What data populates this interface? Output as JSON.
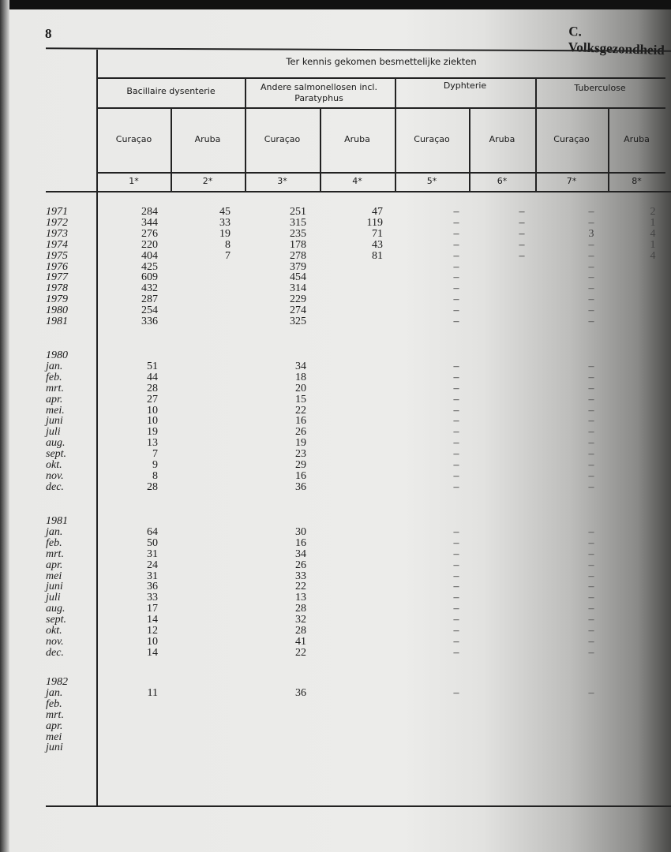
{
  "page_number": "8",
  "chapter": "C. Volksgezondheid",
  "table": {
    "title": "Ter kennis gekomen besmettelijke ziekten",
    "groups": [
      {
        "label": "Bacillaire dysenterie"
      },
      {
        "label": "Andere salmonellosen incl. Paratyphus"
      },
      {
        "label": "Dyphterie"
      },
      {
        "label": "Tuberculose"
      }
    ],
    "columns": [
      {
        "label": "Curaçao",
        "num": "1*"
      },
      {
        "label": "Aruba",
        "num": "2*"
      },
      {
        "label": "Curaçao",
        "num": "3*"
      },
      {
        "label": "Aruba",
        "num": "4*"
      },
      {
        "label": "Curaçao",
        "num": "5*"
      },
      {
        "label": "Aruba",
        "num": "6*"
      },
      {
        "label": "Curaçao",
        "num": "7*"
      },
      {
        "label": "Aruba",
        "num": "8*"
      }
    ],
    "sections": [
      {
        "heading": "",
        "rows": [
          {
            "label": "1971",
            "values": [
              "284",
              "45",
              "251",
              "47",
              "–",
              "–",
              "–",
              "2"
            ]
          },
          {
            "label": "1972",
            "values": [
              "344",
              "33",
              "315",
              "119",
              "–",
              "–",
              "–",
              "1"
            ]
          },
          {
            "label": "1973",
            "values": [
              "276",
              "19",
              "235",
              "71",
              "–",
              "–",
              "3",
              "4"
            ]
          },
          {
            "label": "1974",
            "values": [
              "220",
              "8",
              "178",
              "43",
              "–",
              "–",
              "–",
              "1"
            ]
          },
          {
            "label": "1975",
            "values": [
              "404",
              "7",
              "278",
              "81",
              "–",
              "–",
              "–",
              "4"
            ]
          },
          {
            "label": "1976",
            "values": [
              "425",
              "",
              "379",
              "",
              "–",
              "",
              "–",
              ""
            ]
          },
          {
            "label": "1977",
            "values": [
              "609",
              "",
              "454",
              "",
              "–",
              "",
              "–",
              ""
            ]
          },
          {
            "label": "1978",
            "values": [
              "432",
              "",
              "314",
              "",
              "–",
              "",
              "–",
              ""
            ]
          },
          {
            "label": "1979",
            "values": [
              "287",
              "",
              "229",
              "",
              "–",
              "",
              "–",
              ""
            ]
          },
          {
            "label": "1980",
            "values": [
              "254",
              "",
              "274",
              "",
              "–",
              "",
              "–",
              ""
            ]
          },
          {
            "label": "1981",
            "values": [
              "336",
              "",
              "325",
              "",
              "–",
              "",
              "–",
              ""
            ]
          }
        ]
      },
      {
        "heading": "1980",
        "rows": [
          {
            "label": "jan.",
            "values": [
              "51",
              "",
              "34",
              "",
              "–",
              "",
              "–",
              ""
            ]
          },
          {
            "label": "feb.",
            "values": [
              "44",
              "",
              "18",
              "",
              "–",
              "",
              "–",
              ""
            ]
          },
          {
            "label": "mrt.",
            "values": [
              "28",
              "",
              "20",
              "",
              "–",
              "",
              "–",
              ""
            ]
          },
          {
            "label": "apr.",
            "values": [
              "27",
              "",
              "15",
              "",
              "–",
              "",
              "–",
              ""
            ]
          },
          {
            "label": "mei.",
            "values": [
              "10",
              "",
              "22",
              "",
              "–",
              "",
              "–",
              ""
            ]
          },
          {
            "label": "juni",
            "values": [
              "10",
              "",
              "16",
              "",
              "–",
              "",
              "–",
              ""
            ]
          },
          {
            "label": "juli",
            "values": [
              "19",
              "",
              "26",
              "",
              "–",
              "",
              "–",
              ""
            ]
          },
          {
            "label": "aug.",
            "values": [
              "13",
              "",
              "19",
              "",
              "–",
              "",
              "–",
              ""
            ]
          },
          {
            "label": "sept.",
            "values": [
              "7",
              "",
              "23",
              "",
              "–",
              "",
              "–",
              ""
            ]
          },
          {
            "label": "okt.",
            "values": [
              "9",
              "",
              "29",
              "",
              "–",
              "",
              "–",
              ""
            ]
          },
          {
            "label": "nov.",
            "values": [
              "8",
              "",
              "16",
              "",
              "–",
              "",
              "–",
              ""
            ]
          },
          {
            "label": "dec.",
            "values": [
              "28",
              "",
              "36",
              "",
              "–",
              "",
              "–",
              ""
            ]
          }
        ]
      },
      {
        "heading": "1981",
        "rows": [
          {
            "label": "jan.",
            "values": [
              "64",
              "",
              "30",
              "",
              "–",
              "",
              "–",
              ""
            ]
          },
          {
            "label": "feb.",
            "values": [
              "50",
              "",
              "16",
              "",
              "–",
              "",
              "–",
              ""
            ]
          },
          {
            "label": "mrt.",
            "values": [
              "31",
              "",
              "34",
              "",
              "–",
              "",
              "–",
              ""
            ]
          },
          {
            "label": "apr.",
            "values": [
              "24",
              "",
              "26",
              "",
              "–",
              "",
              "–",
              ""
            ]
          },
          {
            "label": "mei",
            "values": [
              "31",
              "",
              "33",
              "",
              "–",
              "",
              "–",
              ""
            ]
          },
          {
            "label": "juni",
            "values": [
              "36",
              "",
              "22",
              "",
              "–",
              "",
              "–",
              ""
            ]
          },
          {
            "label": "juli",
            "values": [
              "33",
              "",
              "13",
              "",
              "–",
              "",
              "–",
              ""
            ]
          },
          {
            "label": "aug.",
            "values": [
              "17",
              "",
              "28",
              "",
              "–",
              "",
              "–",
              ""
            ]
          },
          {
            "label": "sept.",
            "values": [
              "14",
              "",
              "32",
              "",
              "–",
              "",
              "–",
              ""
            ]
          },
          {
            "label": "okt.",
            "values": [
              "12",
              "",
              "28",
              "",
              "–",
              "",
              "–",
              ""
            ]
          },
          {
            "label": "nov.",
            "values": [
              "10",
              "",
              "41",
              "",
              "–",
              "",
              "–",
              ""
            ]
          },
          {
            "label": "dec.",
            "values": [
              "14",
              "",
              "22",
              "",
              "–",
              "",
              "–",
              ""
            ]
          }
        ]
      },
      {
        "heading": "1982",
        "rows": [
          {
            "label": "jan.",
            "values": [
              "11",
              "",
              "36",
              "",
              "–",
              "",
              "–",
              ""
            ]
          },
          {
            "label": "feb.",
            "values": [
              "",
              "",
              "",
              "",
              "",
              "",
              "",
              ""
            ]
          },
          {
            "label": "mrt.",
            "values": [
              "",
              "",
              "",
              "",
              "",
              "",
              "",
              ""
            ]
          },
          {
            "label": "apr.",
            "values": [
              "",
              "",
              "",
              "",
              "",
              "",
              "",
              ""
            ]
          },
          {
            "label": "mei",
            "values": [
              "",
              "",
              "",
              "",
              "",
              "",
              "",
              ""
            ]
          },
          {
            "label": "juni",
            "values": [
              "",
              "",
              "",
              "",
              "",
              "",
              "",
              ""
            ]
          }
        ]
      }
    ]
  }
}
